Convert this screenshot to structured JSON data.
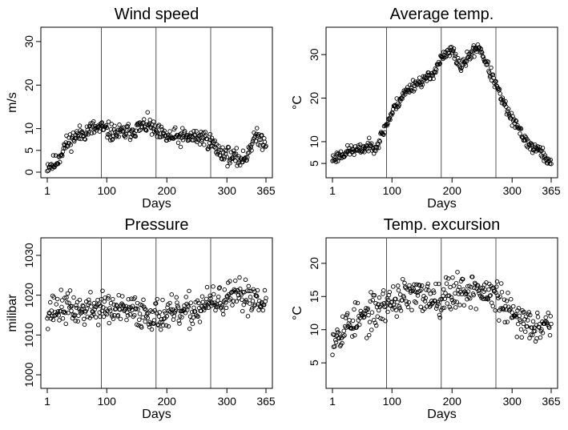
{
  "chart_data": [
    {
      "type": "scatter",
      "title": "Wind speed",
      "xlabel": "Days",
      "ylabel": "m/s",
      "xlim": [
        1,
        365
      ],
      "ylim": [
        0,
        32
      ],
      "xticks": [
        1,
        100,
        200,
        300,
        365
      ],
      "yticks": [
        0,
        5,
        10,
        20,
        30
      ],
      "vlines": [
        91,
        182,
        273
      ],
      "anchors": [
        [
          1,
          1.5
        ],
        [
          15,
          2
        ],
        [
          30,
          6
        ],
        [
          45,
          8
        ],
        [
          60,
          9
        ],
        [
          75,
          10
        ],
        [
          91,
          10
        ],
        [
          110,
          9
        ],
        [
          130,
          9
        ],
        [
          150,
          10
        ],
        [
          170,
          11
        ],
        [
          182,
          9
        ],
        [
          200,
          8
        ],
        [
          220,
          8
        ],
        [
          240,
          8
        ],
        [
          260,
          8
        ],
        [
          273,
          7
        ],
        [
          285,
          5
        ],
        [
          300,
          4
        ],
        [
          315,
          3
        ],
        [
          330,
          3
        ],
        [
          345,
          8
        ],
        [
          365,
          7
        ]
      ],
      "spread": 3,
      "seed": 11
    },
    {
      "type": "scatter",
      "title": "Average temp.",
      "xlabel": "Days",
      "ylabel": "°C",
      "xlim": [
        1,
        365
      ],
      "ylim": [
        3,
        35
      ],
      "xticks": [
        1,
        100,
        200,
        300,
        365
      ],
      "yticks": [
        5,
        10,
        20,
        30
      ],
      "vlines": [
        91,
        182,
        273
      ],
      "anchors": [
        [
          1,
          6
        ],
        [
          15,
          7
        ],
        [
          30,
          8
        ],
        [
          45,
          8
        ],
        [
          60,
          9
        ],
        [
          75,
          9
        ],
        [
          91,
          14
        ],
        [
          105,
          18
        ],
        [
          120,
          21
        ],
        [
          135,
          23
        ],
        [
          150,
          24
        ],
        [
          165,
          25
        ],
        [
          182,
          29
        ],
        [
          200,
          31
        ],
        [
          215,
          27
        ],
        [
          230,
          30
        ],
        [
          245,
          32
        ],
        [
          260,
          27
        ],
        [
          273,
          23
        ],
        [
          285,
          19
        ],
        [
          300,
          15
        ],
        [
          315,
          12
        ],
        [
          330,
          9
        ],
        [
          345,
          8
        ],
        [
          365,
          5
        ]
      ],
      "spread": 2,
      "seed": 23
    },
    {
      "type": "scatter",
      "title": "Pressure",
      "xlabel": "Days",
      "ylabel": "milibar",
      "xlim": [
        1,
        365
      ],
      "ylim": [
        998,
        1033
      ],
      "xticks": [
        1,
        100,
        200,
        300,
        365
      ],
      "yticks": [
        1000,
        1010,
        1020,
        1030
      ],
      "vlines": [
        91,
        182,
        273
      ],
      "anchors": [
        [
          1,
          1016
        ],
        [
          30,
          1017
        ],
        [
          60,
          1016
        ],
        [
          91,
          1017
        ],
        [
          120,
          1016
        ],
        [
          150,
          1016
        ],
        [
          182,
          1015
        ],
        [
          210,
          1015
        ],
        [
          240,
          1016
        ],
        [
          273,
          1018
        ],
        [
          300,
          1019
        ],
        [
          330,
          1020
        ],
        [
          365,
          1019
        ]
      ],
      "spread": 6,
      "seed": 37
    },
    {
      "type": "scatter",
      "title": "Temp. excursion",
      "xlabel": "Days",
      "ylabel": "°C",
      "xlim": [
        1,
        365
      ],
      "ylim": [
        2,
        23
      ],
      "xticks": [
        1,
        100,
        200,
        300,
        365
      ],
      "yticks": [
        5,
        10,
        15,
        20
      ],
      "vlines": [
        91,
        182,
        273
      ],
      "anchors": [
        [
          1,
          9
        ],
        [
          30,
          11
        ],
        [
          60,
          12
        ],
        [
          91,
          14
        ],
        [
          120,
          15
        ],
        [
          150,
          15
        ],
        [
          182,
          15
        ],
        [
          210,
          16
        ],
        [
          240,
          16
        ],
        [
          273,
          15
        ],
        [
          300,
          12
        ],
        [
          330,
          11
        ],
        [
          365,
          11
        ]
      ],
      "spread": 4,
      "seed": 53
    }
  ]
}
